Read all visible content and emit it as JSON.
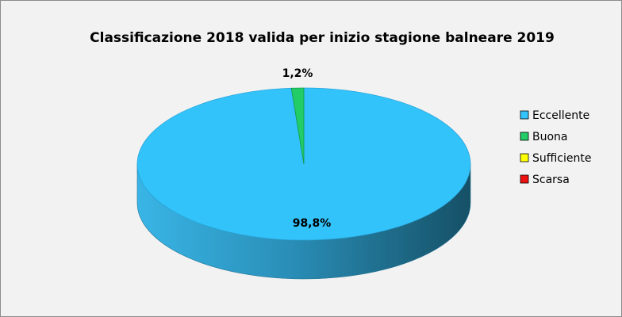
{
  "chart_data": {
    "type": "pie",
    "title": "Classificazione 2018 valida per inizio stagione balneare 2019",
    "categories": [
      "Eccellente",
      "Buona",
      "Sufficiente",
      "Scarsa"
    ],
    "values": [
      98.8,
      1.2,
      0,
      0
    ],
    "data_labels": [
      "98,8%",
      "1,2%",
      "",
      ""
    ],
    "colors": [
      "#33c3fb",
      "#22cc66",
      "#ffff00",
      "#ee1111"
    ],
    "legend_position": "right",
    "style": "3d"
  }
}
